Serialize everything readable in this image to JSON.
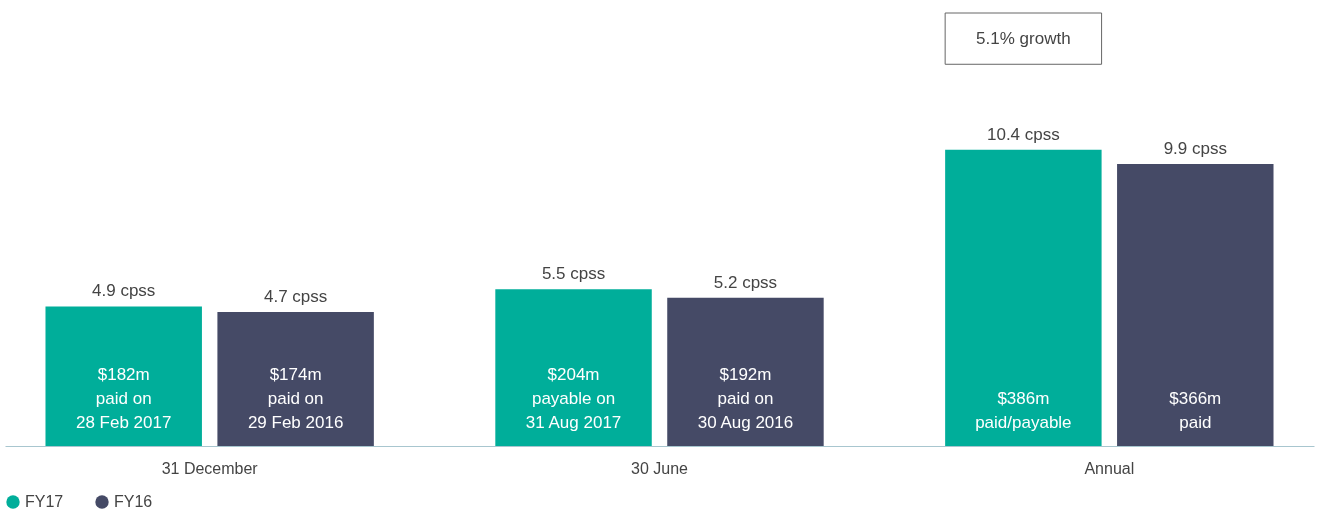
{
  "chart_data": {
    "type": "bar",
    "categories": [
      "31 December",
      "30 June",
      "Annual"
    ],
    "series": [
      {
        "name": "FY17",
        "color": "#00ae9a",
        "values": [
          4.9,
          5.5,
          10.4
        ],
        "value_labels": [
          "4.9 cpss",
          "5.5 cpss",
          "10.4 cpss"
        ]
      },
      {
        "name": "FY16",
        "color": "#454a66",
        "values": [
          4.7,
          5.2,
          9.9
        ],
        "value_labels": [
          "4.7 cpss",
          "5.2 cpss",
          "9.9 cpss"
        ]
      }
    ],
    "ylim": [
      0,
      15.2
    ],
    "tick_labels": "x",
    "grid": false,
    "legend": "bottom left",
    "annotations": [
      "$182m\npaid on\n28 Feb 2017",
      "$174m\npaid on\n29 Feb 2016",
      "$204m\npayable on\n31 Aug 2017",
      "$192m\npaid on\n30 Aug 2016",
      "$386m\npaid/payable",
      "$366m\npaid",
      "5.1% growth"
    ]
  }
}
